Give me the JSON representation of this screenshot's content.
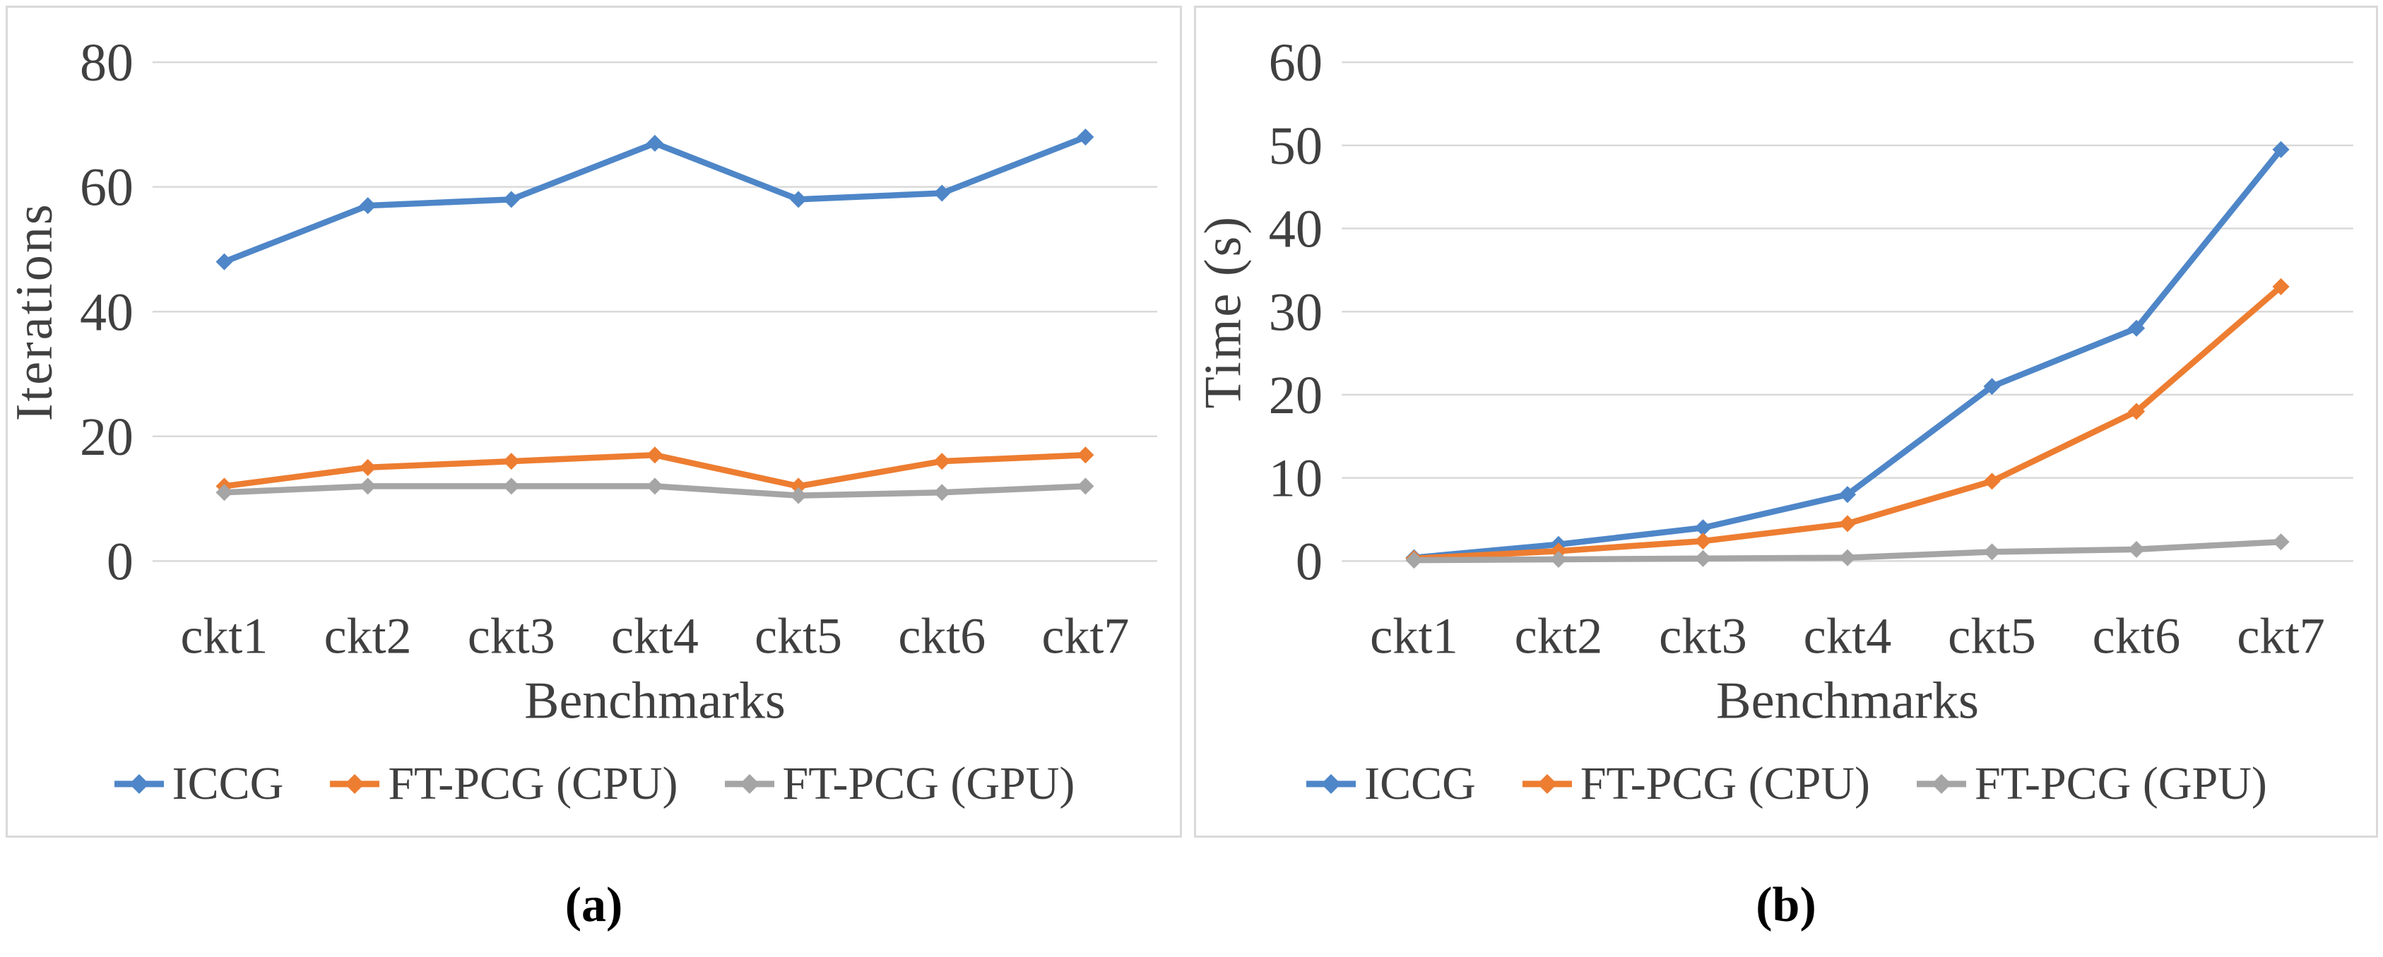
{
  "figure": {
    "caption_a": "(a)",
    "caption_b": "(b)"
  },
  "palette": {
    "iccg": "#4E86C8",
    "ft_pcg_cpu": "#ED7D31",
    "ft_pcg_gpu": "#A5A5A5",
    "gridline": "#D9D9D9",
    "axis_text": "#404040"
  },
  "chart_data": [
    {
      "id": "a",
      "type": "line",
      "title": "",
      "xlabel": "Benchmarks",
      "ylabel": "Iterations",
      "categories": [
        "ckt1",
        "ckt2",
        "ckt3",
        "ckt4",
        "ckt5",
        "ckt6",
        "ckt7"
      ],
      "series": [
        {
          "name": "ICCG",
          "color": "#4E86C8",
          "values": [
            48,
            57,
            58,
            67,
            58,
            59,
            68
          ]
        },
        {
          "name": "FT-PCG (CPU)",
          "color": "#ED7D31",
          "values": [
            12,
            15,
            16,
            17,
            12,
            16,
            17
          ]
        },
        {
          "name": "FT-PCG (GPU)",
          "color": "#A5A5A5",
          "values": [
            11,
            12,
            12,
            12,
            10.5,
            11,
            12
          ]
        }
      ],
      "ylim": [
        0,
        80
      ],
      "yticks": [
        0,
        20,
        40,
        60,
        80
      ],
      "grid": true,
      "legend_position": "bottom"
    },
    {
      "id": "b",
      "type": "line",
      "title": "",
      "xlabel": "Benchmarks",
      "ylabel": "Time (s)",
      "categories": [
        "ckt1",
        "ckt2",
        "ckt3",
        "ckt4",
        "ckt5",
        "ckt6",
        "ckt7"
      ],
      "series": [
        {
          "name": "ICCG",
          "color": "#4E86C8",
          "values": [
            0.4,
            2,
            4,
            8,
            21,
            28,
            49.5
          ]
        },
        {
          "name": "FT-PCG (CPU)",
          "color": "#ED7D31",
          "values": [
            0.3,
            1.2,
            2.4,
            4.5,
            9.6,
            18,
            33
          ]
        },
        {
          "name": "FT-PCG (GPU)",
          "color": "#A5A5A5",
          "values": [
            0.1,
            0.2,
            0.3,
            0.4,
            1.1,
            1.4,
            2.3
          ]
        }
      ],
      "ylim": [
        0,
        60
      ],
      "yticks": [
        0,
        10,
        20,
        30,
        40,
        50,
        60
      ],
      "grid": true,
      "legend_position": "bottom"
    }
  ]
}
